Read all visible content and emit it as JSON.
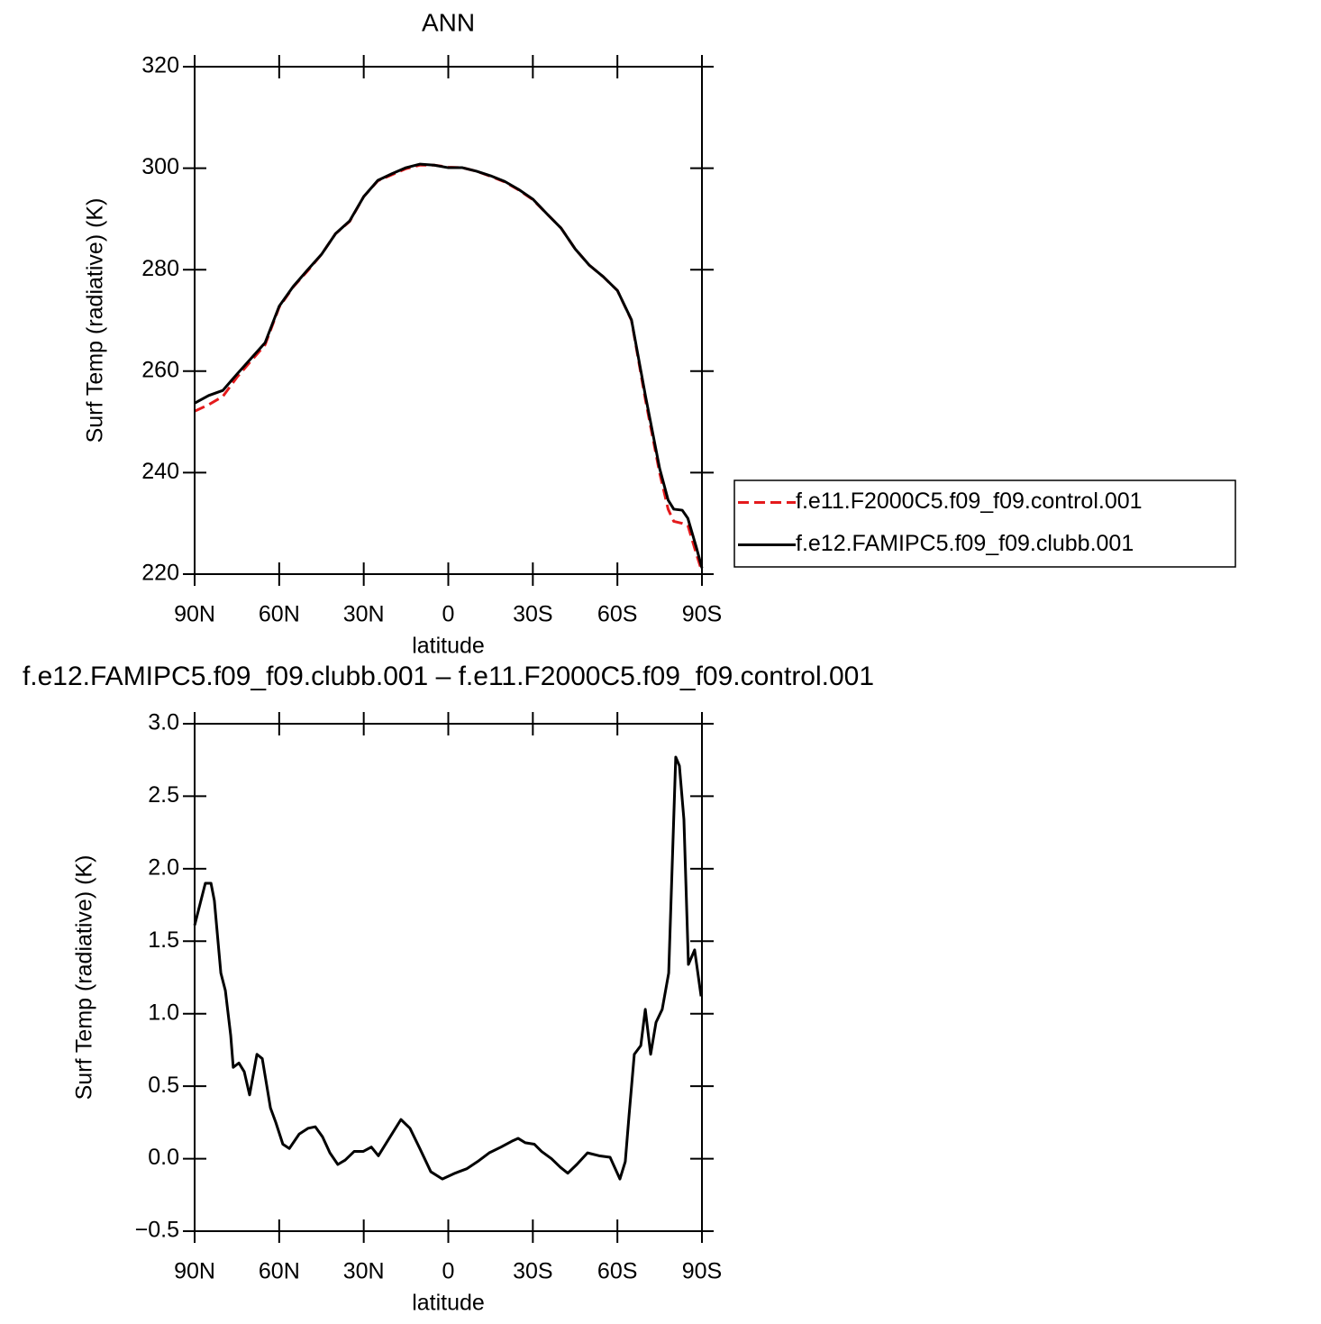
{
  "chart_data": [
    {
      "type": "line",
      "title": "ANN",
      "xlabel": "latitude",
      "ylabel": "Surf Temp (radiative) (K)",
      "x": [
        90,
        85,
        80,
        75,
        70,
        65,
        60,
        55,
        50,
        45,
        40,
        35,
        30,
        25,
        20,
        15,
        10,
        5,
        0,
        -5,
        -10,
        -15,
        -20,
        -25,
        -30,
        -35,
        -40,
        -45,
        -50,
        -55,
        -60,
        -65,
        -70,
        -75,
        -78,
        -80,
        -83,
        -85,
        -88,
        -90
      ],
      "series": [
        {
          "name": "f.e11.F2000C5.f09_f09.control.001",
          "color": "#e41a1c",
          "line_style": "dashed",
          "values": [
            252.1,
            253.4,
            255.0,
            258.8,
            262.0,
            265.2,
            272.6,
            276.6,
            279.7,
            283.0,
            287.1,
            289.5,
            294.4,
            297.5,
            298.7,
            299.9,
            300.6,
            300.6,
            300.2,
            300.1,
            299.4,
            298.4,
            297.3,
            295.7,
            293.8,
            291.0,
            288.2,
            284.1,
            280.9,
            278.6,
            275.9,
            270.0,
            254.2,
            239.9,
            232.8,
            230.4,
            230.0,
            229.6,
            224.0,
            220.5
          ]
        },
        {
          "name": "f.e12.FAMIPC5.f09_f09.clubb.001",
          "color": "#000000",
          "line_style": "solid",
          "values": [
            253.7,
            255.2,
            256.2,
            259.4,
            262.5,
            265.6,
            272.8,
            276.7,
            279.9,
            283.0,
            287.1,
            289.6,
            294.4,
            297.6,
            298.9,
            300.1,
            300.8,
            300.6,
            300.1,
            300.1,
            299.4,
            298.5,
            297.4,
            295.8,
            293.9,
            291.0,
            288.2,
            284.1,
            280.9,
            278.6,
            275.9,
            270.1,
            255.0,
            240.8,
            234.6,
            232.8,
            232.6,
            231.0,
            225.3,
            221.2
          ]
        }
      ],
      "xlim": [
        90,
        -90
      ],
      "xticks": [
        {
          "value": 90,
          "label": "90N"
        },
        {
          "value": 60,
          "label": "60N"
        },
        {
          "value": 30,
          "label": "30N"
        },
        0,
        {
          "value": -30,
          "label": "30S"
        },
        {
          "value": -60,
          "label": "60S"
        },
        {
          "value": -90,
          "label": "90S"
        }
      ],
      "ylim": [
        220,
        320
      ],
      "yticks": [
        220,
        240,
        260,
        280,
        300,
        320
      ],
      "grid": false,
      "legend": "right"
    },
    {
      "type": "line",
      "title": "f.e12.FAMIPC5.f09_f09.clubb.001 – f.e11.F2000C5.f09_f09.control.001",
      "xlabel": "latitude",
      "ylabel": "Surf Temp (radiative) (K)",
      "x": [
        90,
        86.2,
        84.2,
        83,
        80.7,
        79.1,
        77.2,
        76.3,
        74.3,
        72.4,
        70.5,
        67.9,
        66,
        63.1,
        61.2,
        58.7,
        56.4,
        52.9,
        49.7,
        47.2,
        44.6,
        42,
        39.2,
        36.6,
        33.4,
        30.2,
        27.3,
        24.8,
        21.3,
        16.8,
        13.6,
        10.1,
        6.2,
        2.1,
        -2.4,
        -6.5,
        -10.4,
        -14.5,
        -18.7,
        -22.5,
        -24.8,
        -27.3,
        -30.5,
        -33.1,
        -36.6,
        -39.8,
        -42.4,
        -45.6,
        -49.4,
        -53.5,
        -57.4,
        -60.9,
        -62.8,
        -64.1,
        -66,
        -68.3,
        -69.9,
        -71.8,
        -73.7,
        -75.9,
        -78.2,
        -80.7,
        -82,
        -83.6,
        -85.2,
        -87.4,
        -89.7
      ],
      "values": [
        1.61,
        1.9,
        1.9,
        1.78,
        1.28,
        1.16,
        0.85,
        0.63,
        0.66,
        0.6,
        0.44,
        0.72,
        0.69,
        0.35,
        0.25,
        0.1,
        0.07,
        0.17,
        0.21,
        0.22,
        0.15,
        0.04,
        -0.04,
        -0.01,
        0.05,
        0.05,
        0.08,
        0.02,
        0.13,
        0.27,
        0.21,
        0.07,
        -0.09,
        -0.14,
        -0.1,
        -0.07,
        -0.02,
        0.04,
        0.08,
        0.12,
        0.14,
        0.11,
        0.1,
        0.05,
        0.0,
        -0.06,
        -0.1,
        -0.04,
        0.04,
        0.02,
        0.01,
        -0.14,
        -0.02,
        0.29,
        0.72,
        0.78,
        1.03,
        0.72,
        0.94,
        1.03,
        1.28,
        2.77,
        2.71,
        2.34,
        1.34,
        1.44,
        1.12
      ],
      "color": "#000000",
      "xlim": [
        90,
        -90
      ],
      "xticks": [
        {
          "value": 90,
          "label": "90N"
        },
        {
          "value": 60,
          "label": "60N"
        },
        {
          "value": 30,
          "label": "30N"
        },
        0,
        {
          "value": -30,
          "label": "30S"
        },
        {
          "value": -60,
          "label": "60S"
        },
        {
          "value": -90,
          "label": "90S"
        }
      ],
      "ylim": [
        -0.5,
        3.0
      ],
      "yticks": [
        {
          "value": -0.5,
          "label": "−0.5"
        },
        {
          "value": 0,
          "label": "0.0"
        },
        0.5,
        {
          "value": 1,
          "label": "1.0"
        },
        1.5,
        {
          "value": 2,
          "label": "2.0"
        },
        2.5,
        {
          "value": 3,
          "label": "3.0"
        }
      ],
      "grid": false
    }
  ]
}
